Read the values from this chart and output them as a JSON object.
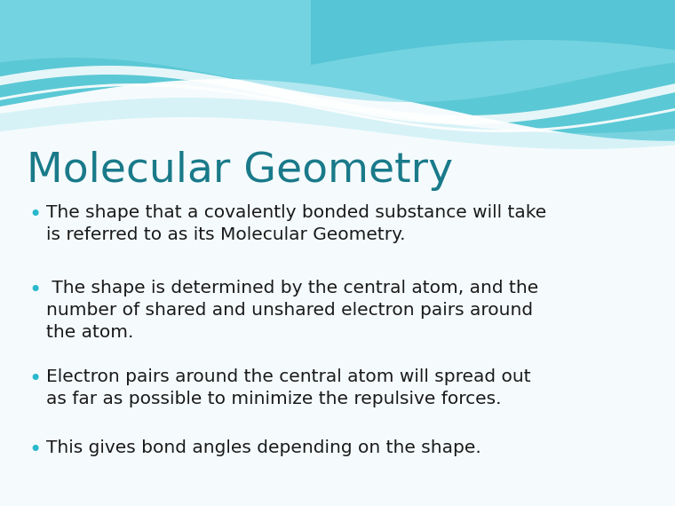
{
  "title": "Molecular Geometry",
  "title_color": "#1a7a8a",
  "title_fontsize": 34,
  "bullet_color": "#29b8cc",
  "text_color": "#1a1a1a",
  "body_fontsize": 14.5,
  "background_color": "#f5fbfd",
  "bullets": [
    "The shape that a covalently bonded substance will take\nis referred to as its Molecular Geometry.",
    " The shape is determined by the central atom, and the\nnumber of shared and unshared electron pairs around\nthe atom.",
    "Electron pairs around the central atom will spread out\nas far as possible to minimize the repulsive forces.",
    "This gives bond angles depending on the shape."
  ]
}
